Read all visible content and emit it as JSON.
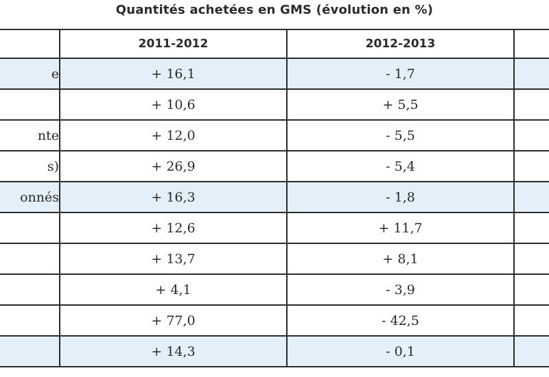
{
  "title": "Quantités achetées en GMS (évolution en %)",
  "columns": [
    "",
    "2011-2012",
    "2012-2013",
    ""
  ],
  "rows": [
    {
      "label": "e",
      "v1": "+ 16,1",
      "v2": "- 1,7",
      "highlight": true
    },
    {
      "label": "",
      "v1": "+ 10,6",
      "v2": "+ 5,5",
      "highlight": false
    },
    {
      "label": "nte",
      "v1": "+ 12,0",
      "v2": "- 5,5",
      "highlight": false
    },
    {
      "label": "s)",
      "v1": "+ 26,9",
      "v2": "- 5,4",
      "highlight": false
    },
    {
      "label": "onnés",
      "v1": "+ 16,3",
      "v2": "- 1,8",
      "highlight": true
    },
    {
      "label": "",
      "v1": "+ 12,6",
      "v2": "+ 11,7",
      "highlight": false
    },
    {
      "label": "",
      "v1": "+ 13,7",
      "v2": "+ 8,1",
      "highlight": false
    },
    {
      "label": "",
      "v1": "+ 4,1",
      "v2": "- 3,9",
      "highlight": false
    },
    {
      "label": "",
      "v1": "+ 77,0",
      "v2": "- 42,5",
      "highlight": false
    },
    {
      "label": "",
      "v1": "+ 14,3",
      "v2": "- 0,1",
      "highlight": true
    }
  ]
}
